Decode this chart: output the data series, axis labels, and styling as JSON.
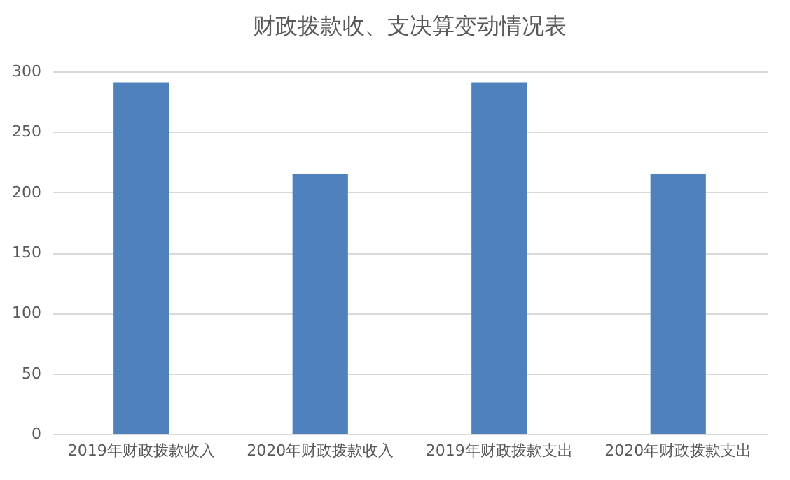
{
  "chart_data": {
    "type": "bar",
    "title": "财政拨款收、支决算变动情况表",
    "categories": [
      "2019年财政拨款收入",
      "2020年财政拨款收入",
      "2019年财政拨款支出",
      "2020年财政拨款支出"
    ],
    "values": [
      291,
      215,
      291,
      215
    ],
    "color": "#4f81bd",
    "ylim": [
      0,
      300
    ],
    "yticks": [
      0,
      50,
      100,
      150,
      200,
      250,
      300
    ],
    "grid": "y"
  }
}
